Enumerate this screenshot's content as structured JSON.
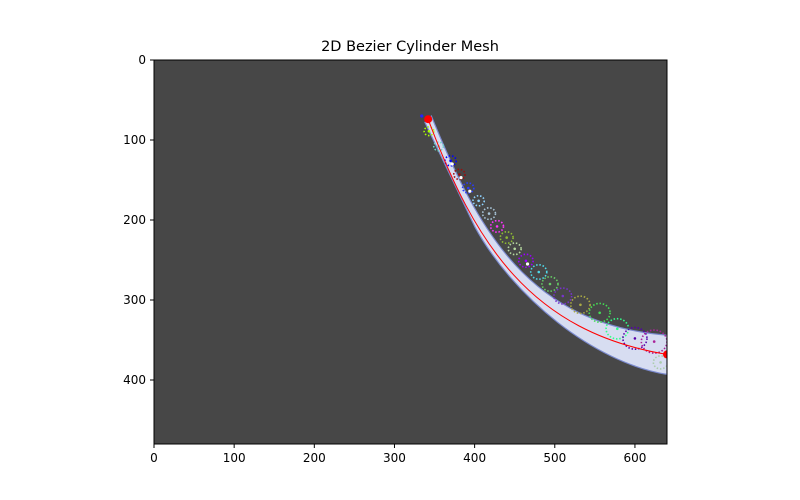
{
  "chart_data": {
    "type": "scatter",
    "title": "2D Bezier Cylinder Mesh",
    "xlabel": "",
    "ylabel": "",
    "xlim": [
      0,
      640
    ],
    "ylim": [
      480,
      0
    ],
    "y_inverted": true,
    "grid": false,
    "background_color": "#474747",
    "x_ticks": [
      0,
      100,
      200,
      300,
      400,
      500,
      600
    ],
    "y_ticks": [
      0,
      100,
      200,
      300,
      400
    ],
    "x_tick_labels": [
      "0",
      "100",
      "200",
      "300",
      "400",
      "500",
      "600"
    ],
    "y_tick_labels": [
      "0",
      "100",
      "200",
      "300",
      "400"
    ],
    "curve": {
      "color": "#ff0000",
      "control_points": [
        [
          342,
          74
        ],
        [
          400,
          230
        ],
        [
          470,
          340
        ],
        [
          640,
          368
        ]
      ]
    },
    "tube": {
      "color": "#dfe6fb",
      "edge_color": "#7f8fd8",
      "outer_edge": [
        [
          346,
          70
        ],
        [
          405,
          215
        ],
        [
          468,
          330
        ],
        [
          640,
          344
        ],
        [
          640,
          393
        ],
        [
          548,
          378
        ],
        [
          448,
          296
        ],
        [
          400,
          208
        ],
        [
          338,
          78
        ]
      ]
    },
    "endpoints": [
      {
        "x": 342,
        "y": 74,
        "color": "#ff0000"
      },
      {
        "x": 640,
        "y": 368,
        "color": "#ff0000"
      }
    ],
    "cross_sections": [
      {
        "x": 343,
        "y": 89,
        "r": 6,
        "color": "#aaff00"
      },
      {
        "x": 355,
        "y": 108,
        "r": 6,
        "color": "#6fd3c8"
      },
      {
        "x": 370,
        "y": 126,
        "r": 7,
        "color": "#0000ff"
      },
      {
        "x": 381,
        "y": 143,
        "r": 7,
        "color": "#9b0d0d"
      },
      {
        "x": 392,
        "y": 160,
        "r": 7,
        "color": "#2a3bff"
      },
      {
        "x": 405,
        "y": 176,
        "r": 7,
        "color": "#8fd3ff"
      },
      {
        "x": 418,
        "y": 192,
        "r": 8,
        "color": "#a8c4d8"
      },
      {
        "x": 428,
        "y": 208,
        "r": 8,
        "color": "#ff33ff"
      },
      {
        "x": 440,
        "y": 222,
        "r": 8,
        "color": "#8fbc33"
      },
      {
        "x": 450,
        "y": 236,
        "r": 8,
        "color": "#b5d8a0"
      },
      {
        "x": 464,
        "y": 251,
        "r": 9,
        "color": "#9900ff"
      },
      {
        "x": 480,
        "y": 265,
        "r": 10,
        "color": "#4fd9e9"
      },
      {
        "x": 494,
        "y": 280,
        "r": 10,
        "color": "#66cc66"
      },
      {
        "x": 510,
        "y": 295,
        "r": 11,
        "color": "#7733cc"
      },
      {
        "x": 532,
        "y": 306,
        "r": 12,
        "color": "#aaaa44"
      },
      {
        "x": 556,
        "y": 316,
        "r": 13,
        "color": "#44dd55"
      },
      {
        "x": 578,
        "y": 336,
        "r": 14,
        "color": "#33ff88"
      },
      {
        "x": 600,
        "y": 348,
        "r": 15,
        "color": "#5500aa"
      },
      {
        "x": 624,
        "y": 352,
        "r": 16,
        "color": "#aa2299"
      },
      {
        "x": 632,
        "y": 378,
        "r": 9,
        "color": "#aaccaa"
      }
    ],
    "extra_points": [
      {
        "x": 334,
        "y": 70,
        "color": "#2222ff"
      },
      {
        "x": 372,
        "y": 130,
        "color": "#ffffff"
      },
      {
        "x": 383,
        "y": 147,
        "color": "#ffffff"
      },
      {
        "x": 394,
        "y": 164,
        "color": "#ffffff"
      },
      {
        "x": 466,
        "y": 255,
        "color": "#ffffff"
      }
    ]
  }
}
